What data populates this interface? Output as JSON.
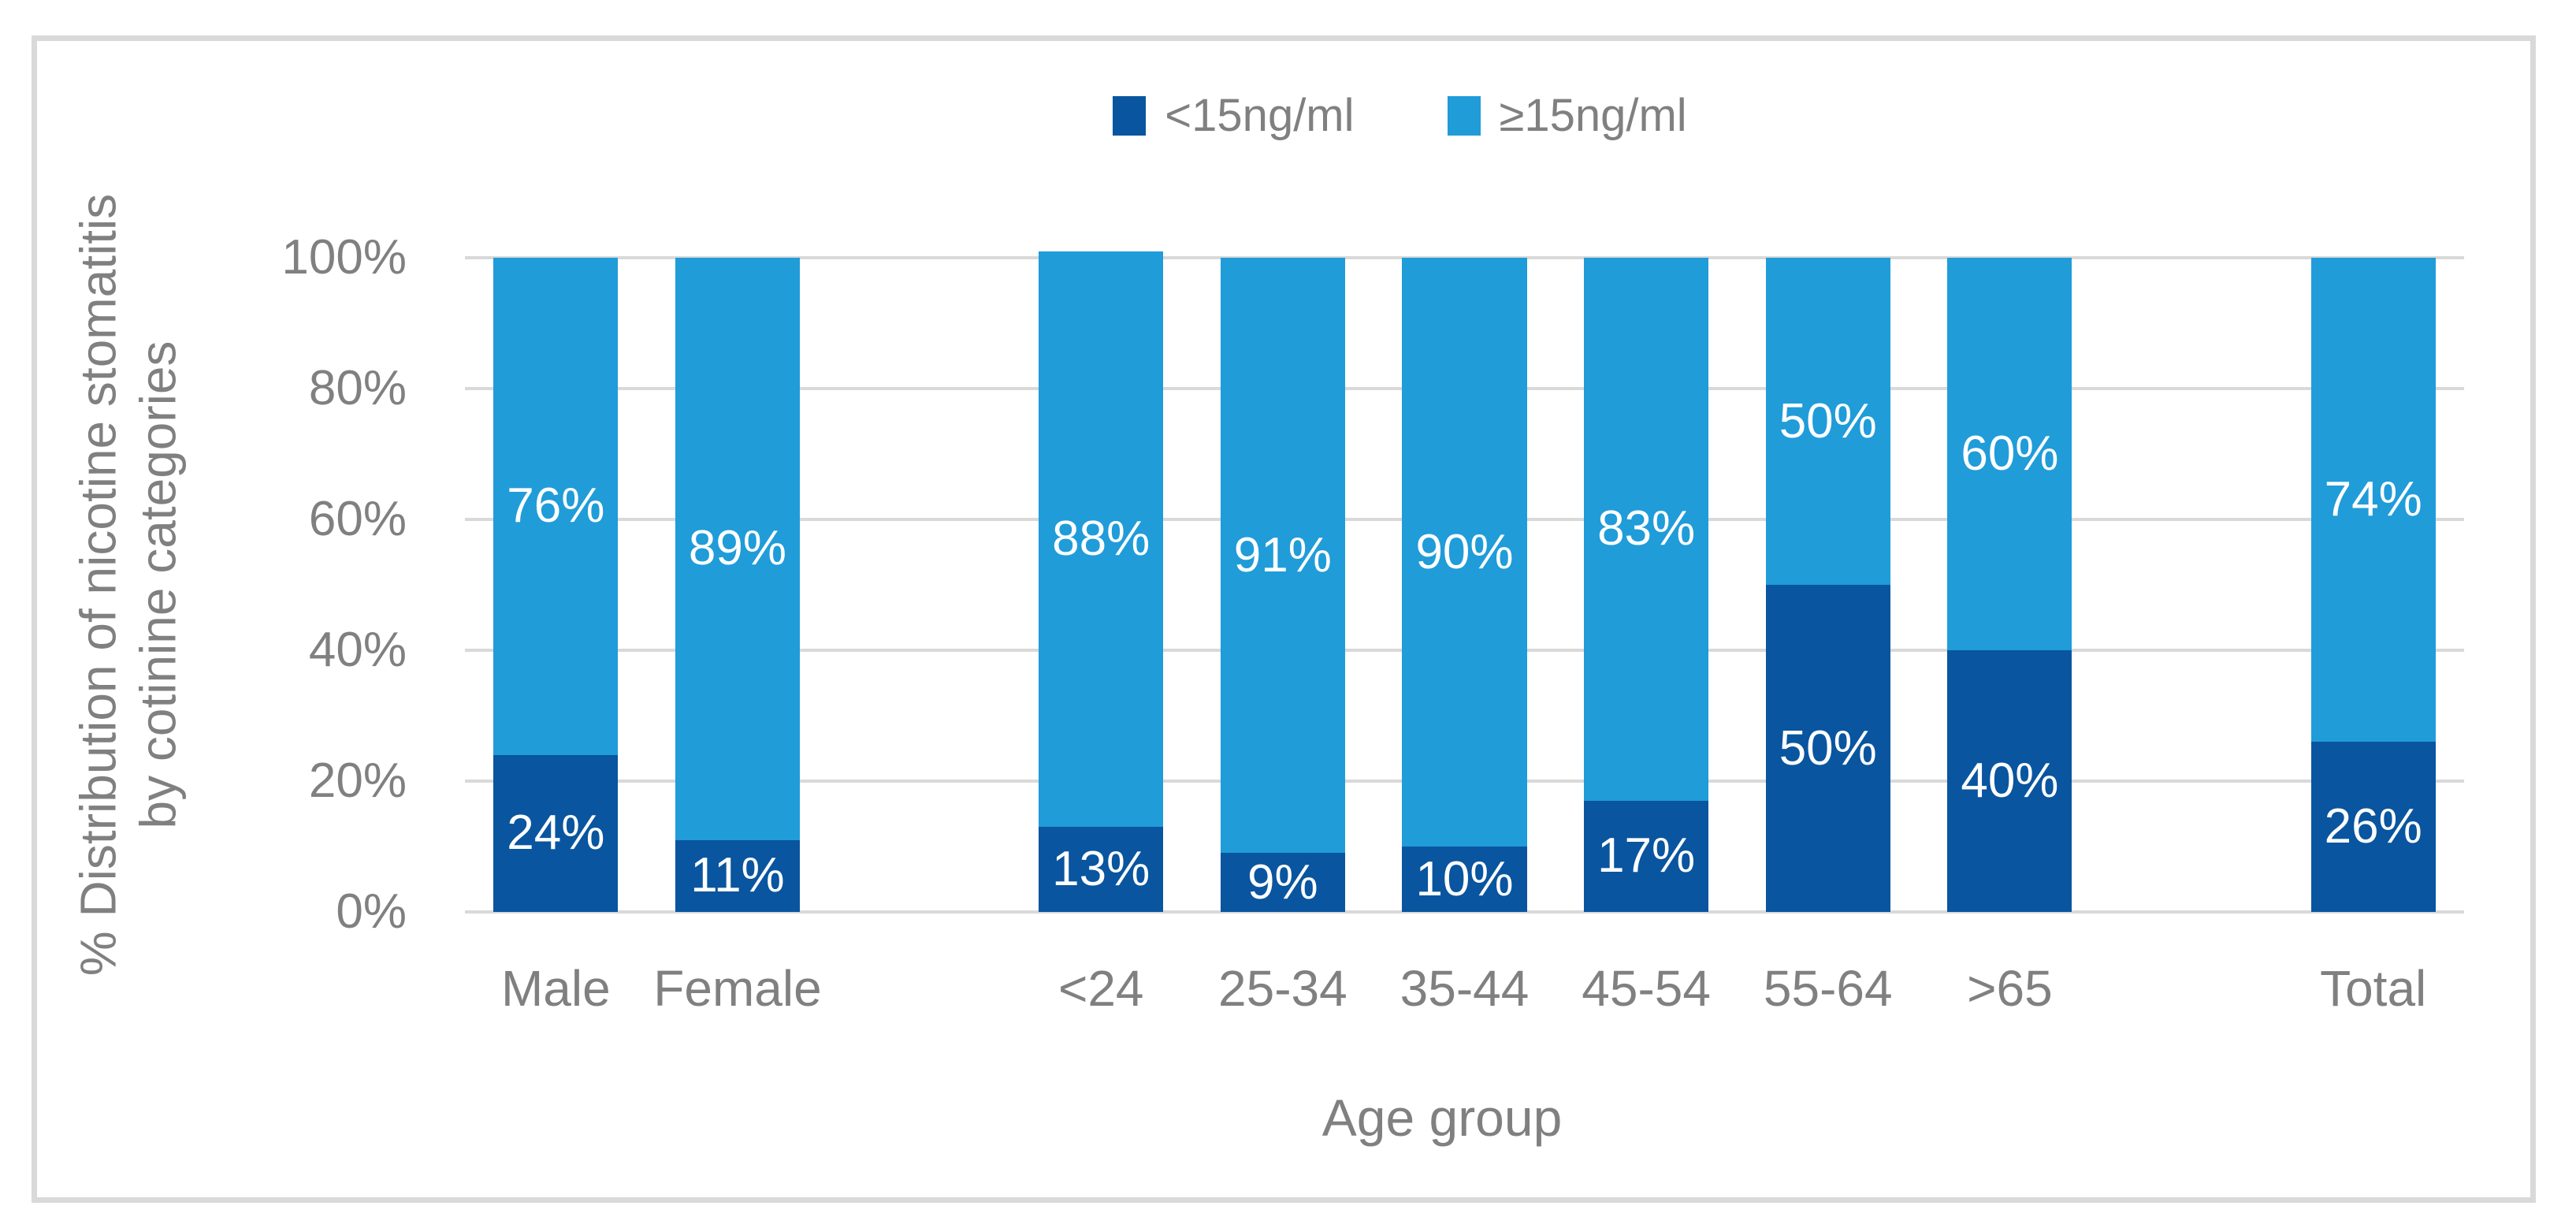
{
  "chart_data": {
    "type": "bar",
    "subtype": "stacked-100-percent",
    "categories": [
      "Male",
      "Female",
      "",
      "<24",
      "25-34",
      "35-44",
      "45-54",
      "55-64",
      ">65",
      "",
      "Total"
    ],
    "series": [
      {
        "name": "<15ng/ml",
        "color": "#09559F",
        "values": [
          24,
          11,
          null,
          13,
          9,
          10,
          17,
          50,
          40,
          null,
          26
        ]
      },
      {
        "name": "≥15ng/ml",
        "color": "#209CD9",
        "values": [
          76,
          89,
          null,
          88,
          91,
          90,
          83,
          50,
          60,
          null,
          74
        ]
      }
    ],
    "value_label_suffix": "%",
    "xlabel": "Age group",
    "ylabel_lines": [
      "% Distribution of nicotine stomatitis",
      "by cotinine categories"
    ],
    "yticks": [
      "0%",
      "20%",
      "40%",
      "60%",
      "80%",
      "100%"
    ],
    "ylim": [
      0,
      100
    ],
    "grid": "horizontal",
    "legend_position": "top-center",
    "colors": {
      "grid": "#D9D9D9",
      "border": "#D9D9D9",
      "axis_text": "#808080",
      "value_label_text": "#FFFFFF",
      "background": "#FFFFFF"
    }
  }
}
